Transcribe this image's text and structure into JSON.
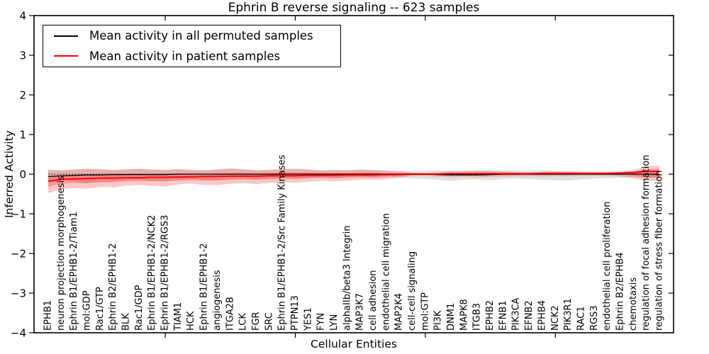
{
  "title": "Ephrin B reverse signaling -- 623 samples",
  "axes": {
    "x_label": "Cellular Entities",
    "y_label": "Inferred Activity"
  },
  "legend": {
    "items": [
      {
        "label": "Mean activity in all permuted samples",
        "color": "#000000"
      },
      {
        "label": "Mean activity in patient samples",
        "color": "#ff0000"
      }
    ]
  },
  "chart_data": {
    "type": "line",
    "title": "Ephrin B reverse signaling -- 623 samples",
    "xlabel": "Cellular Entities",
    "ylabel": "Inferred Activity",
    "ylim": [
      -4,
      4
    ],
    "yticks": [
      4,
      3,
      2,
      1,
      0,
      -1,
      -2,
      -3,
      -4
    ],
    "x_major_tick_indices": [
      9,
      19,
      29,
      39
    ],
    "grid": false,
    "legend_position": "upper left",
    "zero_reference_line": 0,
    "categories": [
      "EPHB1",
      "neuron projection morphogenesis",
      "Ephrin B1/EPHB1-2/Tiam1",
      "mol:GDP",
      "Rac1/GTP",
      "Ephrin B2/EPHB1-2",
      "BLK",
      "Rac1/GDP",
      "Ephrin B1/EPHB1-2/NCK2",
      "Ephrin B1/EPHB1-2/RGS3",
      "TIAM1",
      "HCK",
      "Ephrin B1/EPHB1-2",
      "angiogenesis",
      "ITGA2B",
      "LCK",
      "FGR",
      "SRC",
      "Ephrin B1/EPHB1-2/Src Family Kinases",
      "PTPN13",
      "YES1",
      "FYN",
      "LYN",
      "alphaIIb/beta3 Integrin",
      "MAP3K7",
      "cell adhesion",
      "endothelial cell migration",
      "MAP2K4",
      "cell-cell signaling",
      "mol:GTP",
      "PI3K",
      "DNM1",
      "MAPK8",
      "ITGB3",
      "EPHB2",
      "EFNB1",
      "PIK3CA",
      "EFNB2",
      "EPHB4",
      "NCK2",
      "PIK3R1",
      "RAC1",
      "RGS3",
      "endothelial cell proliferation",
      "Ephrin B2/EPHB4",
      "chemotaxis",
      "regulation of focal adhesion formation",
      "regulation of stress fiber formation"
    ],
    "series": [
      {
        "name": "Mean activity in all permuted samples",
        "color": "#000000",
        "width": 1.3,
        "values": [
          -0.06,
          -0.04,
          -0.03,
          -0.02,
          -0.02,
          -0.01,
          -0.01,
          -0.01,
          -0.01,
          -0.01,
          0,
          0,
          0,
          0,
          0,
          0,
          0,
          0,
          0,
          0,
          0,
          0,
          0,
          0,
          0,
          0,
          0,
          0,
          0,
          0,
          -0.01,
          -0.02,
          -0.02,
          -0.02,
          -0.01,
          0,
          0,
          0,
          0,
          0,
          0,
          0,
          0,
          0,
          0,
          0,
          0,
          -0.01
        ]
      },
      {
        "name": "Mean activity in patient samples",
        "color": "#ff0000",
        "width": 1.9,
        "values": [
          -0.18,
          -0.13,
          -0.12,
          -0.11,
          -0.1,
          -0.1,
          -0.09,
          -0.09,
          -0.08,
          -0.08,
          -0.07,
          -0.07,
          -0.06,
          -0.06,
          -0.05,
          -0.05,
          -0.05,
          -0.04,
          -0.04,
          -0.04,
          -0.03,
          -0.03,
          -0.03,
          -0.02,
          -0.02,
          -0.02,
          -0.01,
          -0.01,
          0,
          0,
          0,
          0.01,
          0.01,
          0.01,
          0.01,
          0.01,
          0.01,
          0.01,
          0.02,
          0.02,
          0.02,
          0.02,
          0.02,
          0.02,
          0.03,
          0.04,
          0.07,
          0.07
        ]
      }
    ],
    "bands": [
      {
        "name": "permuted-samples-spread",
        "color": "#999999",
        "opacity": 0.3,
        "upper": [
          0.1,
          0.09,
          0.12,
          0.14,
          0.13,
          0.11,
          0.12,
          0.13,
          0.11,
          0.1,
          0.12,
          0.1,
          0.09,
          0.11,
          0.15,
          0.13,
          0.1,
          0.11,
          0.12,
          0.13,
          0.11,
          0.09,
          0.1,
          0.09,
          0.11,
          0.1,
          0.09,
          0.08,
          0.08,
          0.09,
          0.1,
          0.09,
          0.08,
          0.09,
          0.1,
          0.09,
          0.08,
          0.08,
          0.09,
          0.08,
          0.08,
          0.07,
          0.07,
          0.08,
          0.08,
          0.08,
          0.09,
          0.09
        ],
        "lower": [
          -0.2,
          -0.16,
          -0.18,
          -0.22,
          -0.19,
          -0.17,
          -0.15,
          -0.14,
          -0.16,
          -0.17,
          -0.14,
          -0.12,
          -0.14,
          -0.15,
          -0.12,
          -0.11,
          -0.13,
          -0.11,
          -0.1,
          -0.12,
          -0.1,
          -0.09,
          -0.1,
          -0.09,
          -0.08,
          -0.09,
          -0.08,
          -0.09,
          -0.11,
          -0.12,
          -0.14,
          -0.17,
          -0.14,
          -0.13,
          -0.15,
          -0.12,
          -0.11,
          -0.12,
          -0.14,
          -0.15,
          -0.16,
          -0.13,
          -0.11,
          -0.1,
          -0.09,
          -0.08,
          -0.09,
          -0.09
        ]
      },
      {
        "name": "patient-samples-spread-outer",
        "color": "#ff0000",
        "opacity": 0.22,
        "upper": [
          0.12,
          0.1,
          0.11,
          0.13,
          0.12,
          0.1,
          0.12,
          0.14,
          0.12,
          0.11,
          0.13,
          0.11,
          0.1,
          0.12,
          0.14,
          0.12,
          0.1,
          0.11,
          0.13,
          0.14,
          0.12,
          0.1,
          0.11,
          0.1,
          0.12,
          0.11,
          0.09,
          0.07,
          0.04,
          0.03,
          0.05,
          0.07,
          0.08,
          0.09,
          0.08,
          0.07,
          0.06,
          0.05,
          0.06,
          0.07,
          0.06,
          0.05,
          0.04,
          0.04,
          0.05,
          0.1,
          0.21,
          0.21
        ],
        "lower": [
          -0.48,
          -0.38,
          -0.35,
          -0.37,
          -0.32,
          -0.33,
          -0.29,
          -0.27,
          -0.3,
          -0.31,
          -0.26,
          -0.24,
          -0.27,
          -0.28,
          -0.24,
          -0.22,
          -0.25,
          -0.22,
          -0.2,
          -0.22,
          -0.19,
          -0.17,
          -0.18,
          -0.16,
          -0.14,
          -0.15,
          -0.12,
          -0.09,
          -0.05,
          -0.04,
          -0.06,
          -0.08,
          -0.07,
          -0.08,
          -0.07,
          -0.06,
          -0.05,
          -0.05,
          -0.06,
          -0.05,
          -0.05,
          -0.04,
          -0.04,
          -0.04,
          -0.06,
          -0.1,
          -0.17,
          -0.17
        ]
      },
      {
        "name": "patient-samples-spread-inner",
        "color": "#ff0000",
        "opacity": 0.25,
        "upper": [
          -0.05,
          -0.03,
          -0.02,
          0,
          0,
          -0.01,
          0,
          0.01,
          0.01,
          0.01,
          0.02,
          0.01,
          0.01,
          0.02,
          0.03,
          0.03,
          0.02,
          0.03,
          0.04,
          0.04,
          0.04,
          0.03,
          0.03,
          0.03,
          0.04,
          0.04,
          0.03,
          0.03,
          0.02,
          0.01,
          0.02,
          0.04,
          0.04,
          0.05,
          0.04,
          0.04,
          0.03,
          0.03,
          0.04,
          0.04,
          0.04,
          0.03,
          0.03,
          0.03,
          0.04,
          0.06,
          0.13,
          0.13
        ],
        "lower": [
          -0.32,
          -0.24,
          -0.22,
          -0.23,
          -0.2,
          -0.2,
          -0.18,
          -0.17,
          -0.18,
          -0.18,
          -0.16,
          -0.15,
          -0.16,
          -0.16,
          -0.14,
          -0.13,
          -0.14,
          -0.12,
          -0.11,
          -0.12,
          -0.1,
          -0.09,
          -0.1,
          -0.08,
          -0.08,
          -0.08,
          -0.06,
          -0.05,
          -0.02,
          -0.02,
          -0.03,
          -0.03,
          -0.03,
          -0.03,
          -0.03,
          -0.03,
          -0.02,
          -0.02,
          -0.02,
          -0.02,
          -0.02,
          -0.01,
          -0.01,
          -0.01,
          -0.02,
          -0.04,
          -0.08,
          -0.08
        ]
      }
    ]
  }
}
